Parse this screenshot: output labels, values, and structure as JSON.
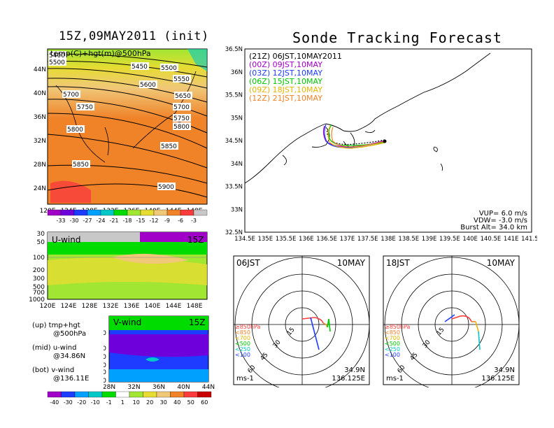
{
  "titles": {
    "left": "15Z,09MAY2011 (init)",
    "right": "Sonde Tracking Forecast"
  },
  "top_map": {
    "subtitle": "temp(C)+hgt(m)@500hPa",
    "x_ticks": [
      "120E",
      "124E",
      "128E",
      "132E",
      "136E",
      "140E",
      "144E",
      "148E"
    ],
    "y_ticks": [
      "44N",
      "40N",
      "36N",
      "32N",
      "28N",
      "24N"
    ],
    "contour_labels": [
      "5400",
      "5500",
      "5450",
      "5500",
      "5550",
      "5600",
      "5650",
      "5700",
      "5700",
      "5750",
      "5750",
      "5800",
      "5800",
      "5850",
      "5850",
      "5900"
    ],
    "colorbar_labels": [
      "-33",
      "-30",
      "-27",
      "-24",
      "-21",
      "-18",
      "-15",
      "-12",
      "-9",
      "-6",
      "-3"
    ],
    "colorbar_colors": [
      "#a000c8",
      "#6e00dc",
      "#1e3cff",
      "#00a0ff",
      "#00c8c8",
      "#00dc00",
      "#a0e632",
      "#e6dc32",
      "#f0c878",
      "#f08228",
      "#fa3c3c",
      "#c8c8c8"
    ]
  },
  "u_panel": {
    "title": "U-wind",
    "time": "15Z",
    "y_ticks": [
      "30",
      "50",
      "100",
      "200",
      "300",
      "500",
      "700",
      "1000"
    ],
    "x_ticks": [
      "120E",
      "124E",
      "128E",
      "132E",
      "136E",
      "140E",
      "144E",
      "148E"
    ]
  },
  "v_panel": {
    "title": "V-wind",
    "time": "15Z",
    "y_ticks": [
      "100",
      "200",
      "300",
      "500",
      "700",
      "1000"
    ],
    "x_ticks": [
      "28N",
      "32N",
      "36N",
      "40N",
      "44N"
    ]
  },
  "notes": [
    {
      "a": "(up) tmp+hgt",
      "b": "@500hPa"
    },
    {
      "a": "(mid) u-wind",
      "b": "@34.86N"
    },
    {
      "a": "(bot) v-wind",
      "b": "@136.11E"
    }
  ],
  "wind_colorbar": {
    "labels": [
      "-40",
      "-30",
      "-20",
      "-10",
      "-1",
      "1",
      "10",
      "20",
      "30",
      "40",
      "50",
      "60"
    ],
    "colors": [
      "#a000c8",
      "#1e3cff",
      "#00a0ff",
      "#00c8c8",
      "#00dc00",
      "#ffffff",
      "#a0e632",
      "#e6dc32",
      "#f0c878",
      "#f08228",
      "#fa3c3c",
      "#c80000"
    ]
  },
  "tracking": {
    "x_ticks": [
      "134.5E",
      "135E",
      "135.5E",
      "136E",
      "136.5E",
      "137E",
      "137.5E",
      "138E",
      "138.5E",
      "139E",
      "139.5E",
      "140E",
      "140.5E",
      "141E",
      "141.5E"
    ],
    "y_ticks": [
      "36.5N",
      "36N",
      "35.5N",
      "35N",
      "34.5N",
      "34N",
      "33.5N",
      "33N",
      "32.5N"
    ],
    "legend": [
      {
        "text": "(21Z)  06JST,10MAY2011",
        "color": "#000000"
      },
      {
        "text": "(00Z)  09JST,10MAY",
        "color": "#a000c8"
      },
      {
        "text": "(03Z)  12JST,10MAY",
        "color": "#1e3cff"
      },
      {
        "text": "(06Z)  15JST,10MAY",
        "color": "#00c800"
      },
      {
        "text": "(09Z)  18JST,10MAY",
        "color": "#e6b400"
      },
      {
        "text": "(12Z)  21JST,10MAY",
        "color": "#f08228"
      }
    ],
    "params": [
      "VUP=  6.0  m/s",
      "VDW=  -3.0  m/s",
      "Burst Alt=  34.0  km"
    ]
  },
  "hodographs": [
    {
      "time": "06JST",
      "date": "10MAY",
      "lat": "34.9N",
      "lon": "136.125E",
      "unit": "ms-1"
    },
    {
      "time": "18JST",
      "date": "10MAY",
      "lat": "34.9N",
      "lon": "136.125E",
      "unit": "ms-1"
    }
  ],
  "hodo_legend": [
    {
      "text": "≥850hPa",
      "color": "#fa3c3c"
    },
    {
      "text": "<850",
      "color": "#f08228"
    },
    {
      "text": "<700",
      "color": "#e6b400"
    },
    {
      "text": "<500",
      "color": "#00c800"
    },
    {
      "text": "<250",
      "color": "#00c8c8"
    },
    {
      "text": "<100",
      "color": "#1e3cff"
    }
  ],
  "hodo_ring_labels": [
    "15",
    "30",
    "45",
    "60"
  ],
  "chart_data": [
    {
      "type": "heatmap",
      "title": "15Z,09MAY2011 (init)",
      "subtitle": "temp(C)+hgt(m)@500hPa"
    },
    {
      "type": "heatmap",
      "title": "U-wind"
    },
    {
      "type": "heatmap",
      "title": "V-wind"
    },
    {
      "type": "line",
      "title": "Sonde Tracking Forecast"
    },
    {
      "type": "line",
      "title": "06JST 10MAY"
    },
    {
      "type": "line",
      "title": "18JST 10MAY"
    }
  ]
}
